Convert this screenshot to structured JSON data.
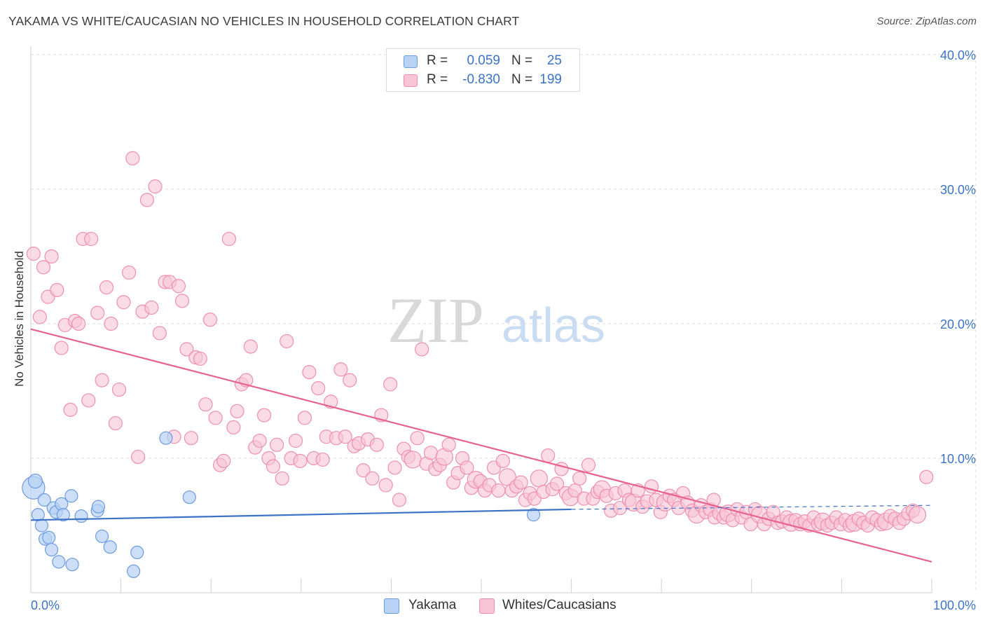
{
  "title": "YAKAMA VS WHITE/CAUCASIAN NO VEHICLES IN HOUSEHOLD CORRELATION CHART",
  "source": "Source: ZipAtlas.com",
  "watermark": {
    "zip": "ZIP",
    "atlas": "atlas"
  },
  "legend": [
    {
      "r_label": "R =",
      "r_value": "0.059",
      "n_label": "N =",
      "n_value": "25",
      "fill": "#b8d2f5",
      "stroke": "#6b9be0"
    },
    {
      "r_label": "R =",
      "r_value": "-0.830",
      "n_label": "N =",
      "n_value": "199",
      "fill": "#f9c5d6",
      "stroke": "#ee8fae"
    }
  ],
  "bottom_legend": [
    {
      "label": "Yakama"
    },
    {
      "label": "Whites/Caucasians"
    }
  ],
  "chart_data": {
    "type": "scatter",
    "title": "YAKAMA VS WHITE/CAUCASIAN NO VEHICLES IN HOUSEHOLD CORRELATION CHART",
    "xlabel": "",
    "ylabel": "No Vehicles in Household",
    "xlim": [
      0,
      100
    ],
    "ylim": [
      0,
      42
    ],
    "x_tick_labels": [
      "0.0%",
      "100.0%"
    ],
    "y_ticks": [
      10,
      20,
      30,
      40
    ],
    "y_tick_labels": [
      "10.0%",
      "20.0%",
      "30.0%",
      "40.0%"
    ],
    "grid": true,
    "legend_position": "top-center",
    "colors": {
      "yakama": "#3c73c9",
      "yakama_fill": "#b8d2f5",
      "yakama_stroke": "#6b9be0",
      "whites": "#e8628e",
      "whites_fill": "#f9c5d6",
      "whites_stroke": "#ee8fae",
      "axis_label": "#3c73c9",
      "grid": "#dcdcdc"
    },
    "series": [
      {
        "name": "Yakama",
        "r": 0.059,
        "n": 25,
        "trend": {
          "x": [
            0,
            60
          ],
          "y": [
            5.4,
            6.2
          ],
          "dashed_to": [
            100,
            6.5
          ]
        },
        "points": [
          [
            0.3,
            7.8,
            16
          ],
          [
            0.5,
            8.3,
            10
          ],
          [
            0.8,
            5.8,
            9
          ],
          [
            1.2,
            5.0,
            9
          ],
          [
            1.5,
            6.9,
            9
          ],
          [
            1.6,
            4.0,
            9
          ],
          [
            2.0,
            4.1,
            9
          ],
          [
            2.3,
            3.2,
            9
          ],
          [
            2.5,
            6.3,
            9
          ],
          [
            2.8,
            6.0,
            9
          ],
          [
            3.1,
            2.3,
            9
          ],
          [
            3.4,
            6.6,
            9
          ],
          [
            3.6,
            5.8,
            9
          ],
          [
            4.5,
            7.2,
            9
          ],
          [
            4.6,
            2.1,
            9
          ],
          [
            5.6,
            5.7,
            9
          ],
          [
            7.4,
            6.1,
            9
          ],
          [
            7.5,
            6.4,
            9
          ],
          [
            7.9,
            4.2,
            9
          ],
          [
            8.8,
            3.4,
            9
          ],
          [
            11.8,
            3.0,
            9
          ],
          [
            11.4,
            1.6,
            9
          ],
          [
            15.0,
            11.5,
            9
          ],
          [
            17.6,
            7.1,
            9
          ],
          [
            55.8,
            5.8,
            9
          ]
        ]
      },
      {
        "name": "Whites/Caucasians",
        "r": -0.83,
        "n": 199,
        "trend": {
          "x": [
            0,
            100
          ],
          "y": [
            19.6,
            2.3
          ]
        },
        "points": [
          [
            0.3,
            25.2
          ],
          [
            1.0,
            20.5
          ],
          [
            1.4,
            24.2
          ],
          [
            1.9,
            22.0
          ],
          [
            2.3,
            25.0
          ],
          [
            2.9,
            22.5
          ],
          [
            3.4,
            18.2
          ],
          [
            3.8,
            19.9
          ],
          [
            4.4,
            13.6
          ],
          [
            4.9,
            20.2
          ],
          [
            5.3,
            20.0
          ],
          [
            5.8,
            26.3
          ],
          [
            6.4,
            14.3
          ],
          [
            6.7,
            26.3
          ],
          [
            7.4,
            20.8
          ],
          [
            7.9,
            15.8
          ],
          [
            8.4,
            22.7
          ],
          [
            8.9,
            20.0
          ],
          [
            9.4,
            12.6
          ],
          [
            9.8,
            15.1
          ],
          [
            10.3,
            21.6
          ],
          [
            10.9,
            23.8
          ],
          [
            11.3,
            32.3
          ],
          [
            11.9,
            10.1
          ],
          [
            12.4,
            20.9
          ],
          [
            12.9,
            29.2
          ],
          [
            13.4,
            21.2
          ],
          [
            13.8,
            30.2
          ],
          [
            14.3,
            19.3
          ],
          [
            14.9,
            23.1
          ],
          [
            15.4,
            23.1
          ],
          [
            15.9,
            11.6
          ],
          [
            16.4,
            22.8
          ],
          [
            16.8,
            21.7
          ],
          [
            17.3,
            18.1
          ],
          [
            17.8,
            11.5
          ],
          [
            18.3,
            17.5
          ],
          [
            18.8,
            17.4
          ],
          [
            19.4,
            14.0
          ],
          [
            19.9,
            20.3
          ],
          [
            20.5,
            13.0
          ],
          [
            21.0,
            9.5
          ],
          [
            21.4,
            9.8
          ],
          [
            22.0,
            26.3
          ],
          [
            22.5,
            12.3
          ],
          [
            22.9,
            13.5
          ],
          [
            23.4,
            15.5
          ],
          [
            23.9,
            15.8
          ],
          [
            24.4,
            18.3
          ],
          [
            24.9,
            10.8
          ],
          [
            25.4,
            11.3
          ],
          [
            25.9,
            13.2
          ],
          [
            26.4,
            10.0
          ],
          [
            26.9,
            9.4
          ],
          [
            27.3,
            11.0
          ],
          [
            27.9,
            8.5
          ],
          [
            28.4,
            18.7
          ],
          [
            28.9,
            10.0
          ],
          [
            29.4,
            11.3
          ],
          [
            29.9,
            9.8
          ],
          [
            30.4,
            13.0
          ],
          [
            30.9,
            16.4
          ],
          [
            31.4,
            10.0
          ],
          [
            31.9,
            15.2
          ],
          [
            32.4,
            9.9
          ],
          [
            32.8,
            11.6
          ],
          [
            33.3,
            14.2
          ],
          [
            33.9,
            11.5
          ],
          [
            34.4,
            16.6
          ],
          [
            34.9,
            11.6
          ],
          [
            35.4,
            15.8
          ],
          [
            35.9,
            10.9
          ],
          [
            36.4,
            11.1
          ],
          [
            36.9,
            9.1
          ],
          [
            37.4,
            11.4
          ],
          [
            37.9,
            8.5
          ],
          [
            38.4,
            11.0
          ],
          [
            38.9,
            13.2
          ],
          [
            39.4,
            8.0
          ],
          [
            39.9,
            15.5
          ],
          [
            40.4,
            9.3
          ],
          [
            40.9,
            6.9
          ],
          [
            41.4,
            10.7
          ],
          [
            41.9,
            10.1
          ],
          [
            42.4,
            9.9
          ],
          [
            42.9,
            11.5
          ],
          [
            43.4,
            18.1
          ],
          [
            43.9,
            9.6
          ],
          [
            44.4,
            10.4
          ],
          [
            44.9,
            9.2
          ],
          [
            45.4,
            9.5
          ],
          [
            45.9,
            10.1
          ],
          [
            46.4,
            11.0
          ],
          [
            46.9,
            8.2
          ],
          [
            47.4,
            8.9
          ],
          [
            47.9,
            10.0
          ],
          [
            48.4,
            9.3
          ],
          [
            48.9,
            7.8
          ],
          [
            49.4,
            8.4
          ],
          [
            49.9,
            8.3
          ],
          [
            50.4,
            7.6
          ],
          [
            50.9,
            8.0
          ],
          [
            51.4,
            9.3
          ],
          [
            51.9,
            7.6
          ],
          [
            52.4,
            9.8
          ],
          [
            52.9,
            8.6
          ],
          [
            53.4,
            7.6
          ],
          [
            53.9,
            7.9
          ],
          [
            54.4,
            8.2
          ],
          [
            54.9,
            6.9
          ],
          [
            55.4,
            7.4
          ],
          [
            55.9,
            7.0
          ],
          [
            56.4,
            8.5
          ],
          [
            56.9,
            7.5
          ],
          [
            57.4,
            10.2
          ],
          [
            57.9,
            7.7
          ],
          [
            58.4,
            8.1
          ],
          [
            58.9,
            9.2
          ],
          [
            59.4,
            7.4
          ],
          [
            59.9,
            7.1
          ],
          [
            60.4,
            7.6
          ],
          [
            60.9,
            8.5
          ],
          [
            61.4,
            7.0
          ],
          [
            61.9,
            9.5
          ],
          [
            62.4,
            7.0
          ],
          [
            62.9,
            7.5
          ],
          [
            63.4,
            7.7
          ],
          [
            63.9,
            7.2
          ],
          [
            64.4,
            6.1
          ],
          [
            64.9,
            7.4
          ],
          [
            65.4,
            6.3
          ],
          [
            65.9,
            7.6
          ],
          [
            66.4,
            6.9
          ],
          [
            66.9,
            6.7
          ],
          [
            67.4,
            7.6
          ],
          [
            67.9,
            6.4
          ],
          [
            68.4,
            6.8
          ],
          [
            68.9,
            7.9
          ],
          [
            69.4,
            6.9
          ],
          [
            69.9,
            6.0
          ],
          [
            70.4,
            6.7
          ],
          [
            70.9,
            7.2
          ],
          [
            71.4,
            6.9
          ],
          [
            71.9,
            6.3
          ],
          [
            72.4,
            7.4
          ],
          [
            72.9,
            6.7
          ],
          [
            73.4,
            6.1
          ],
          [
            73.9,
            5.8
          ],
          [
            74.4,
            6.5
          ],
          [
            74.9,
            6.0
          ],
          [
            75.4,
            6.2
          ],
          [
            75.9,
            5.6
          ],
          [
            76.4,
            5.9
          ],
          [
            76.9,
            5.6
          ],
          [
            77.4,
            5.9
          ],
          [
            77.9,
            5.4
          ],
          [
            78.4,
            6.2
          ],
          [
            78.9,
            5.6
          ],
          [
            79.4,
            6.0
          ],
          [
            79.9,
            5.1
          ],
          [
            80.4,
            6.2
          ],
          [
            80.9,
            5.8
          ],
          [
            81.4,
            5.1
          ],
          [
            81.9,
            5.5
          ],
          [
            82.4,
            6.0
          ],
          [
            82.9,
            5.2
          ],
          [
            83.4,
            5.3
          ],
          [
            83.9,
            5.6
          ],
          [
            84.4,
            5.2
          ],
          [
            84.9,
            5.4
          ],
          [
            85.4,
            5.1
          ],
          [
            85.9,
            5.3
          ],
          [
            86.4,
            5.0
          ],
          [
            86.9,
            5.6
          ],
          [
            87.4,
            5.1
          ],
          [
            87.9,
            5.3
          ],
          [
            88.4,
            5.0
          ],
          [
            88.9,
            5.2
          ],
          [
            89.4,
            5.6
          ],
          [
            89.9,
            5.1
          ],
          [
            90.4,
            5.4
          ],
          [
            90.9,
            5.0
          ],
          [
            91.4,
            5.2
          ],
          [
            91.9,
            5.5
          ],
          [
            92.4,
            5.2
          ],
          [
            92.9,
            5.0
          ],
          [
            93.4,
            5.6
          ],
          [
            93.9,
            5.4
          ],
          [
            94.4,
            5.1
          ],
          [
            94.9,
            5.3
          ],
          [
            95.4,
            5.7
          ],
          [
            95.9,
            5.5
          ],
          [
            96.4,
            5.2
          ],
          [
            96.9,
            5.5
          ],
          [
            97.4,
            5.9
          ],
          [
            97.9,
            6.1
          ],
          [
            98.4,
            5.8
          ],
          [
            99.4,
            8.6
          ],
          [
            75.8,
            6.9
          ]
        ]
      }
    ]
  }
}
